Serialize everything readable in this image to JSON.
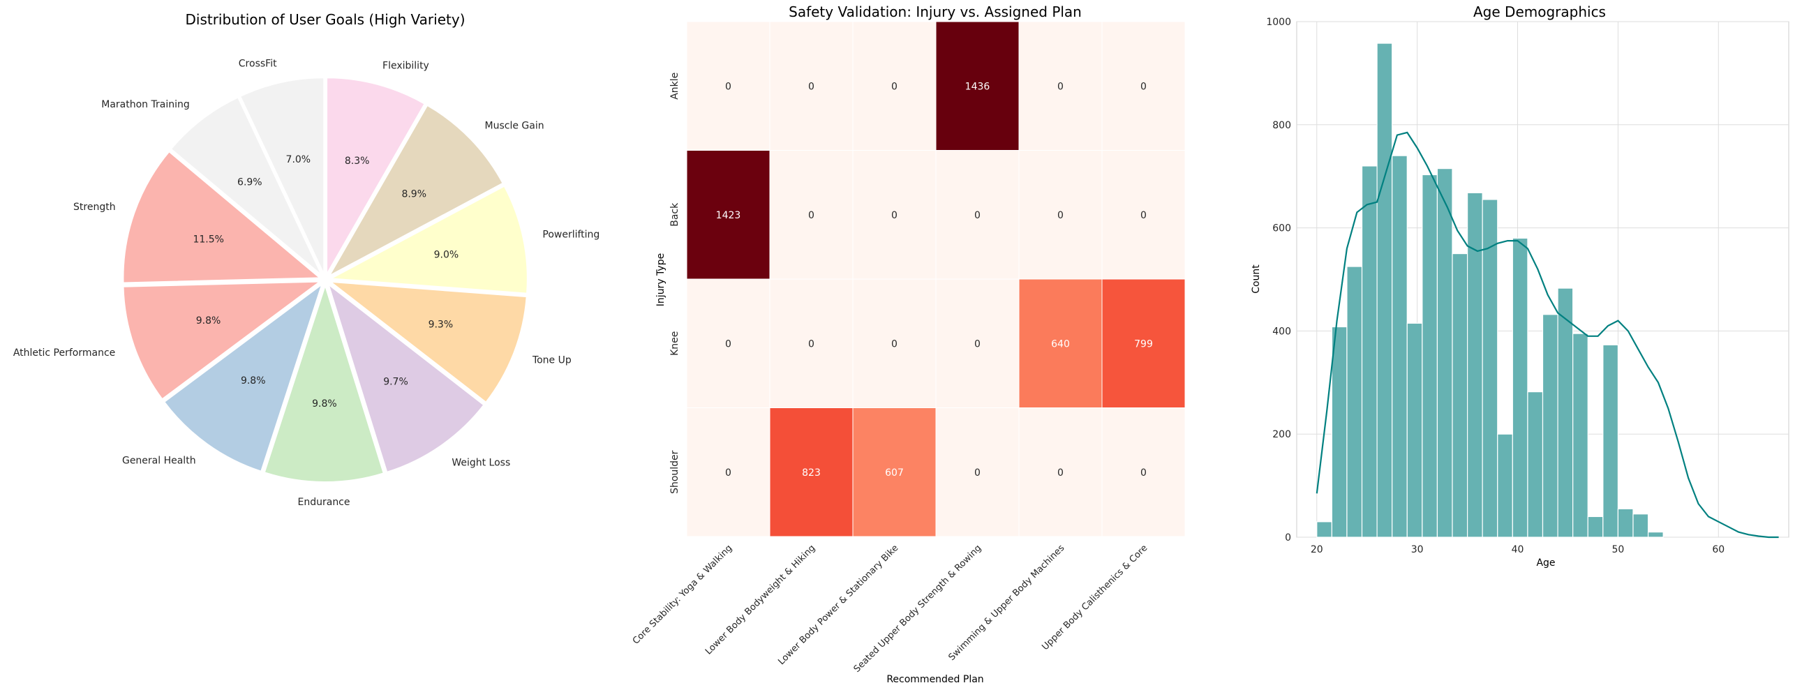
{
  "chart_data": [
    {
      "type": "pie",
      "title": "Distribution of User Goals (High Variety)",
      "slices": [
        {
          "label": "Flexibility",
          "value": 8.3,
          "color": "#fbd9ec"
        },
        {
          "label": "Muscle Gain",
          "value": 8.9,
          "color": "#e5d8bd"
        },
        {
          "label": "Powerlifting",
          "value": 9.0,
          "color": "#ffffcc"
        },
        {
          "label": "Tone Up",
          "value": 9.3,
          "color": "#fed9a6"
        },
        {
          "label": "Weight Loss",
          "value": 9.7,
          "color": "#decbe4"
        },
        {
          "label": "Endurance",
          "value": 9.8,
          "color": "#ccebc5"
        },
        {
          "label": "General Health",
          "value": 9.8,
          "color": "#b3cde3"
        },
        {
          "label": "Athletic Performance",
          "value": 9.8,
          "color": "#fbb4ae"
        },
        {
          "label": "Strength",
          "value": 11.5,
          "color": "#fbb4ae"
        },
        {
          "label": "Marathon Training",
          "value": 6.9,
          "color": "#f2f2f2"
        },
        {
          "label": "CrossFit",
          "value": 7.0,
          "color": "#f2f2f2"
        }
      ],
      "pct_labels": [
        "8.3%",
        "8.9%",
        "9.0%",
        "9.3%",
        "9.7%",
        "9.8%",
        "9.8%",
        "9.8%",
        "11.5%",
        "6.9%",
        "7.0%"
      ]
    },
    {
      "type": "heatmap",
      "title": "Safety Validation: Injury vs. Assigned Plan",
      "xlabel": "Recommended Plan",
      "ylabel": "Injury Type",
      "x_categories": [
        "Core Stability: Yoga & Walking",
        "Lower Body Bodyweight & Hiking",
        "Lower Body Power & Stationary Bike",
        "Seated Upper Body Strength & Rowing",
        "Swimming & Upper Body Machines",
        "Upper Body Calisthenics & Core"
      ],
      "y_categories": [
        "Ankle",
        "Back",
        "Knee",
        "Shoulder"
      ],
      "values": [
        [
          0,
          0,
          0,
          1436,
          0,
          0
        ],
        [
          1423,
          0,
          0,
          0,
          0,
          0
        ],
        [
          0,
          0,
          0,
          0,
          640,
          799
        ],
        [
          0,
          823,
          607,
          0,
          0,
          0
        ]
      ],
      "value_labels": [
        [
          "0",
          "0",
          "0",
          "1436",
          "0",
          "0"
        ],
        [
          "1423",
          "0",
          "0",
          "0",
          "0",
          "0"
        ],
        [
          "0",
          "0",
          "0",
          "0",
          "640",
          "799"
        ],
        [
          "0",
          "823",
          "607",
          "0",
          "0",
          "0"
        ]
      ],
      "colormap": "Reds",
      "vmin": 0,
      "vmax": 1436
    },
    {
      "type": "histogram",
      "title": "Age Demographics",
      "xlabel": "Age",
      "ylabel": "Count",
      "bins_start": 20,
      "bin_width": 1.5,
      "counts": [
        30,
        408,
        525,
        720,
        958,
        740,
        415,
        703,
        715,
        550,
        668,
        655,
        200,
        580,
        282,
        432,
        483,
        395,
        40,
        373,
        55,
        45,
        10
      ],
      "xlim": [
        18,
        67
      ],
      "ylim": [
        0,
        1000
      ],
      "xticks": [
        "20",
        "30",
        "40",
        "50",
        "60"
      ],
      "yticks": [
        "0",
        "200",
        "400",
        "600",
        "800",
        "1000"
      ],
      "bar_color": "#66b2b2",
      "kde_color": "#008080",
      "kde": [
        [
          20,
          85
        ],
        [
          21,
          245
        ],
        [
          22,
          420
        ],
        [
          23,
          560
        ],
        [
          24,
          630
        ],
        [
          25,
          645
        ],
        [
          26,
          650
        ],
        [
          27,
          715
        ],
        [
          28,
          780
        ],
        [
          29,
          785
        ],
        [
          30,
          755
        ],
        [
          31,
          720
        ],
        [
          32,
          680
        ],
        [
          33,
          640
        ],
        [
          34,
          595
        ],
        [
          35,
          565
        ],
        [
          36,
          555
        ],
        [
          37,
          560
        ],
        [
          38,
          570
        ],
        [
          39,
          575
        ],
        [
          40,
          575
        ],
        [
          41,
          560
        ],
        [
          42,
          520
        ],
        [
          43,
          470
        ],
        [
          44,
          435
        ],
        [
          45,
          420
        ],
        [
          46,
          405
        ],
        [
          47,
          390
        ],
        [
          48,
          390
        ],
        [
          49,
          410
        ],
        [
          50,
          420
        ],
        [
          51,
          400
        ],
        [
          52,
          365
        ],
        [
          53,
          330
        ],
        [
          54,
          300
        ],
        [
          55,
          250
        ],
        [
          56,
          185
        ],
        [
          57,
          115
        ],
        [
          58,
          65
        ],
        [
          59,
          40
        ],
        [
          60,
          30
        ],
        [
          61,
          20
        ],
        [
          62,
          10
        ],
        [
          63,
          5
        ],
        [
          64,
          2
        ],
        [
          65,
          0
        ],
        [
          66,
          0
        ]
      ]
    }
  ]
}
